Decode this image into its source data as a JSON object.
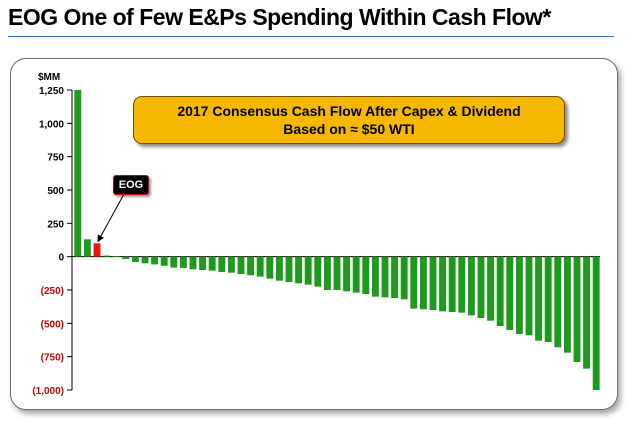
{
  "slide": {
    "title": "EOG One of Few E&Ps Spending Within Cash Flow*"
  },
  "callout": {
    "line1": "2017 Consensus Cash Flow After Capex & Dividend",
    "line2": "Based on ≈ $50 WTI"
  },
  "highlight": {
    "label": "EOG",
    "index": 2
  },
  "colors": {
    "bar": "#1e9a1e",
    "highlight_bar": "#ee1111",
    "negative_tick": "#cc0000",
    "callout_fill": "#f5b700"
  },
  "chart_data": {
    "type": "bar",
    "title": "",
    "unit_label": "$MM",
    "ylim": [
      -1000,
      1250
    ],
    "y_ticks": [
      1250,
      1000,
      750,
      500,
      250,
      0,
      -250,
      -500,
      -750,
      -1000
    ],
    "y_tick_labels": [
      "1,250",
      "1,000",
      "750",
      "500",
      "250",
      "0",
      "(250)",
      "(500)",
      "(750)",
      "(1,000)"
    ],
    "grid": false,
    "values": [
      1250,
      130,
      100,
      8,
      5,
      -18,
      -40,
      -50,
      -58,
      -68,
      -82,
      -85,
      -95,
      -100,
      -105,
      -115,
      -120,
      -130,
      -140,
      -150,
      -165,
      -180,
      -190,
      -200,
      -210,
      -225,
      -250,
      -250,
      -260,
      -270,
      -280,
      -300,
      -305,
      -310,
      -320,
      -390,
      -395,
      -400,
      -410,
      -415,
      -420,
      -440,
      -460,
      -480,
      -520,
      -550,
      -580,
      -590,
      -630,
      -640,
      -680,
      -720,
      -790,
      -840,
      -1000
    ]
  }
}
